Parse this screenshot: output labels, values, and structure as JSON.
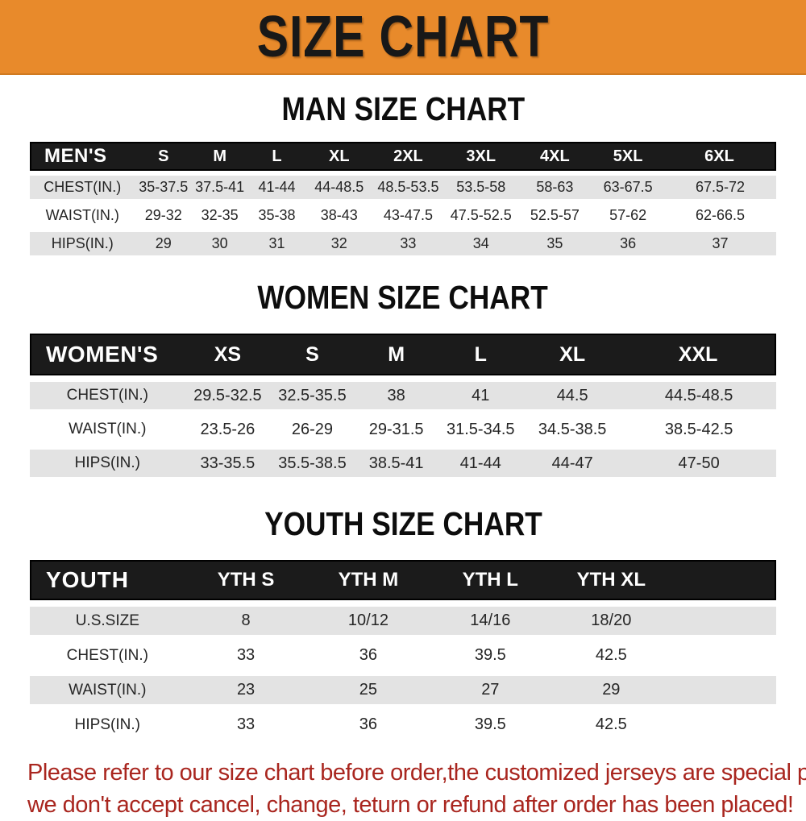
{
  "banner": {
    "title": "SIZE CHART"
  },
  "colors": {
    "banner_orange": "#e88a2b",
    "header_black": "#1b1b1b",
    "row_gray": "#e3e3e3",
    "footer_red": "#a9261f"
  },
  "sections": [
    {
      "title": "MAN SIZE CHART",
      "header": {
        "label": "MEN'S",
        "columns": [
          "S",
          "M",
          "L",
          "XL",
          "2XL",
          "3XL",
          "4XL",
          "5XL",
          "6XL"
        ]
      },
      "rows": [
        {
          "label": "CHEST(IN.)",
          "values": [
            "35-37.5",
            "37.5-41",
            "41-44",
            "44-48.5",
            "48.5-53.5",
            "53.5-58",
            "58-63",
            "63-67.5",
            "67.5-72"
          ]
        },
        {
          "label": "WAIST(IN.)",
          "values": [
            "29-32",
            "32-35",
            "35-38",
            "38-43",
            "43-47.5",
            "47.5-52.5",
            "52.5-57",
            "57-62",
            "62-66.5"
          ]
        },
        {
          "label": "HIPS(IN.)",
          "values": [
            "29",
            "30",
            "31",
            "32",
            "33",
            "34",
            "35",
            "36",
            "37"
          ]
        }
      ]
    },
    {
      "title": "WOMEN SIZE CHART",
      "header": {
        "label": "WOMEN'S",
        "columns": [
          "XS",
          "S",
          "M",
          "L",
          "XL",
          "XXL"
        ]
      },
      "rows": [
        {
          "label": "CHEST(IN.)",
          "values": [
            "29.5-32.5",
            "32.5-35.5",
            "38",
            "41",
            "44.5",
            "44.5-48.5"
          ]
        },
        {
          "label": "WAIST(IN.)",
          "values": [
            "23.5-26",
            "26-29",
            "29-31.5",
            "31.5-34.5",
            "34.5-38.5",
            "38.5-42.5"
          ]
        },
        {
          "label": "HIPS(IN.)",
          "values": [
            "33-35.5",
            "35.5-38.5",
            "38.5-41",
            "41-44",
            "44-47",
            "47-50"
          ]
        }
      ]
    },
    {
      "title": "YOUTH SIZE CHART",
      "header": {
        "label": "YOUTH",
        "columns": [
          "YTH S",
          "YTH M",
          "YTH L",
          "YTH XL"
        ]
      },
      "rows": [
        {
          "label": "U.S.SIZE",
          "values": [
            "8",
            "10/12",
            "14/16",
            "18/20"
          ]
        },
        {
          "label": "CHEST(IN.)",
          "values": [
            "33",
            "36",
            "39.5",
            "42.5"
          ]
        },
        {
          "label": "WAIST(IN.)",
          "values": [
            "23",
            "25",
            "27",
            "29"
          ]
        },
        {
          "label": "HIPS(IN.)",
          "values": [
            "33",
            "36",
            "39.5",
            "42.5"
          ]
        }
      ]
    }
  ],
  "footer": {
    "lines": [
      "Please refer to our size chart before order,the customized jerseys are special products,",
      "we don't accept cancel, change, teturn or refund after order has been placed!"
    ]
  }
}
